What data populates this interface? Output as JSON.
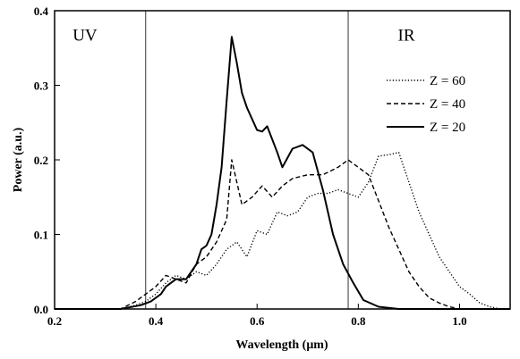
{
  "chart_data": {
    "type": "line",
    "xlabel": "Wavelength (μm)",
    "ylabel": "Power (a.u.)",
    "xlim": [
      0.2,
      1.1
    ],
    "ylim": [
      0.0,
      0.4
    ],
    "xticks": [
      0.2,
      0.4,
      0.6,
      0.8,
      1.0
    ],
    "xtick_labels": [
      "0.2",
      "0.4",
      "0.6",
      "0.8",
      "1.0"
    ],
    "yticks": [
      0.0,
      0.1,
      0.2,
      0.3,
      0.4
    ],
    "ytick_labels": [
      "0.0",
      "0.1",
      "0.2",
      "0.3",
      "0.4"
    ],
    "grid": false,
    "legend_position": "right",
    "vertical_lines": [
      0.38,
      0.78
    ],
    "regions": [
      {
        "label": "UV",
        "x": 0.26,
        "y": 0.36
      },
      {
        "label": "IR",
        "x": 0.895,
        "y": 0.36
      }
    ],
    "series": [
      {
        "name": "Z = 60",
        "style": "dotted",
        "x": [
          0.2,
          0.33,
          0.36,
          0.38,
          0.4,
          0.42,
          0.44,
          0.46,
          0.48,
          0.5,
          0.52,
          0.54,
          0.56,
          0.58,
          0.6,
          0.62,
          0.64,
          0.66,
          0.68,
          0.7,
          0.72,
          0.74,
          0.76,
          0.78,
          0.8,
          0.82,
          0.84,
          0.86,
          0.88,
          0.9,
          0.92,
          0.94,
          0.96,
          0.98,
          1.0,
          1.02,
          1.04,
          1.06,
          1.08,
          1.1
        ],
        "y": [
          0.0,
          0.0,
          0.005,
          0.01,
          0.02,
          0.035,
          0.045,
          0.04,
          0.05,
          0.045,
          0.06,
          0.08,
          0.09,
          0.07,
          0.105,
          0.1,
          0.13,
          0.125,
          0.13,
          0.15,
          0.155,
          0.155,
          0.16,
          0.155,
          0.15,
          0.17,
          0.205,
          0.207,
          0.21,
          0.17,
          0.13,
          0.1,
          0.07,
          0.05,
          0.03,
          0.02,
          0.008,
          0.003,
          0.0,
          0.0
        ]
      },
      {
        "name": "Z = 40",
        "style": "dashed",
        "x": [
          0.2,
          0.33,
          0.36,
          0.38,
          0.4,
          0.42,
          0.44,
          0.46,
          0.48,
          0.5,
          0.52,
          0.54,
          0.55,
          0.57,
          0.59,
          0.61,
          0.63,
          0.65,
          0.67,
          0.7,
          0.73,
          0.76,
          0.78,
          0.8,
          0.82,
          0.84,
          0.86,
          0.88,
          0.9,
          0.92,
          0.94,
          0.96,
          0.98,
          1.0,
          1.02,
          1.1
        ],
        "y": [
          0.0,
          0.0,
          0.01,
          0.02,
          0.03,
          0.045,
          0.04,
          0.035,
          0.06,
          0.07,
          0.09,
          0.12,
          0.2,
          0.14,
          0.15,
          0.165,
          0.15,
          0.165,
          0.175,
          0.18,
          0.18,
          0.19,
          0.2,
          0.19,
          0.18,
          0.145,
          0.11,
          0.08,
          0.05,
          0.03,
          0.015,
          0.008,
          0.003,
          0.0,
          0.0,
          0.0
        ]
      },
      {
        "name": "Z = 20",
        "style": "solid",
        "x": [
          0.2,
          0.33,
          0.37,
          0.39,
          0.41,
          0.42,
          0.44,
          0.46,
          0.48,
          0.49,
          0.5,
          0.51,
          0.52,
          0.53,
          0.54,
          0.55,
          0.56,
          0.57,
          0.58,
          0.6,
          0.61,
          0.62,
          0.64,
          0.65,
          0.67,
          0.69,
          0.71,
          0.73,
          0.75,
          0.77,
          0.79,
          0.81,
          0.84,
          0.88,
          1.1
        ],
        "y": [
          0.0,
          0.0,
          0.005,
          0.01,
          0.02,
          0.03,
          0.04,
          0.04,
          0.06,
          0.08,
          0.085,
          0.1,
          0.14,
          0.19,
          0.28,
          0.365,
          0.33,
          0.29,
          0.27,
          0.24,
          0.238,
          0.245,
          0.21,
          0.19,
          0.215,
          0.22,
          0.21,
          0.16,
          0.1,
          0.06,
          0.035,
          0.012,
          0.003,
          0.0,
          0.0
        ]
      }
    ]
  }
}
